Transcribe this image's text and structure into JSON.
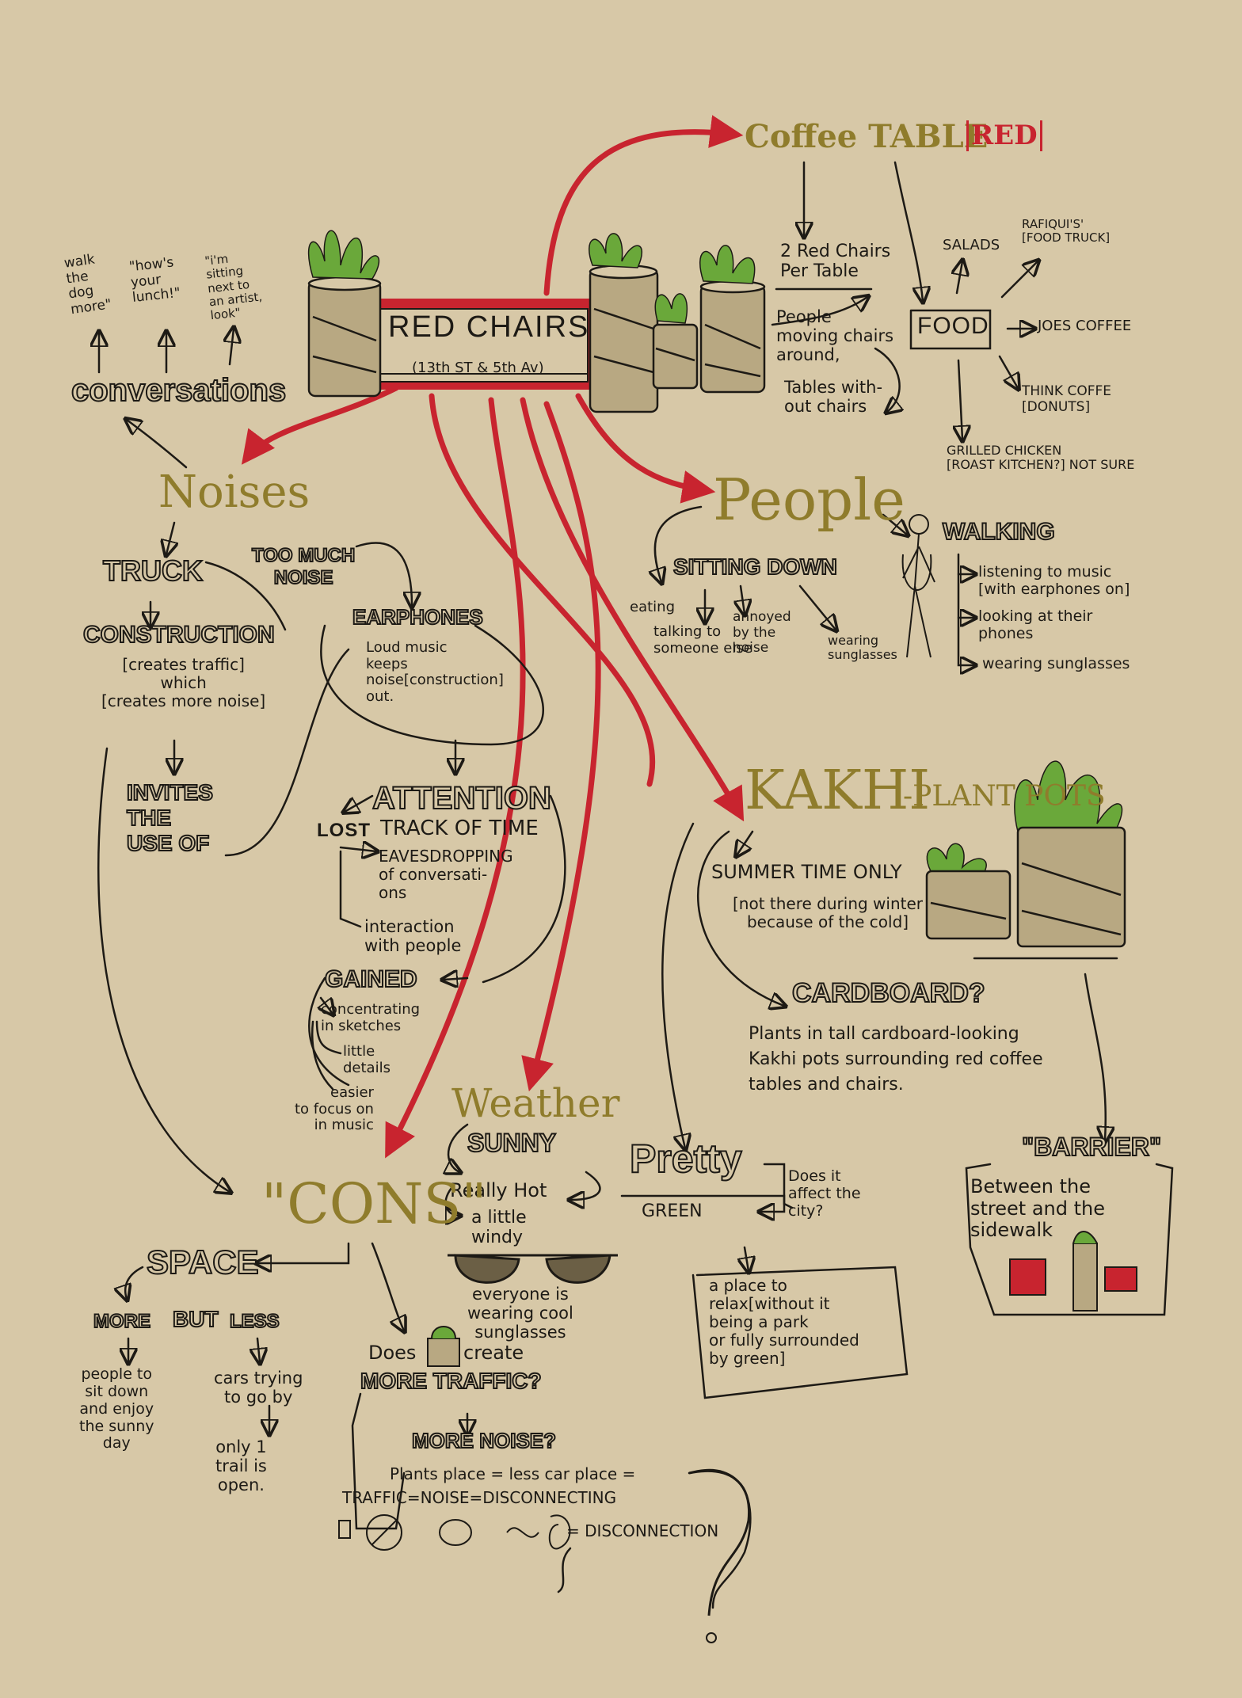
{
  "colors": {
    "background": "#d7c8a7",
    "ink": "#1d1a15",
    "accent_red": "#c8242f",
    "olive": "#8f7c2c",
    "pot": "#b8a882",
    "leaf": "#6aa83a"
  },
  "center": {
    "title": "RED CHAIRS",
    "location": "(13th ST & 5th Av)"
  },
  "coffee_table": {
    "title": "Coffee TABLE",
    "tag": "RED",
    "chairs": "2 Red Chairs\nPer Table",
    "moving": "People\nmoving chairs\naround,",
    "tables_without": "Tables with-\nout chairs",
    "food": "FOOD",
    "salads": "SALADS",
    "rafiquis": "RAFIQUI'S'\n[FOOD TRUCK]",
    "joes": "JOES COFFEE",
    "think": "THINK COFFE\n[DONUTS]",
    "grilled": "GRILLED CHICKEN\n[ROAST KITCHEN?] NOT SURE"
  },
  "conversations": {
    "title": "conversations",
    "quote1": "walk\nthe\ndog\nmore\"",
    "quote2": "\"how's\nyour\nlunch!\"",
    "quote3": "\"i'm\nsitting\nnext to\nan artist,\nlook\""
  },
  "noises": {
    "title": "Noises",
    "truck": "TRUCK",
    "too_much": "TOO MUCH\nNOISE",
    "construction": "CONSTRUCTION",
    "creates": "[creates traffic]\nwhich\n[creates more noise]",
    "invites": "INVITES\nTHE\nUSE OF",
    "earphones": "EARPHONES",
    "loud_music": "Loud music\nkeeps\nnoise[construction]\nout."
  },
  "attention": {
    "title": "ATTENTION",
    "lost": "LOST",
    "track": "TRACK OF TIME",
    "eaves": "EAVESDROPPING\nof conversati-\nons",
    "interaction": "interaction\nwith people",
    "gained": "GAINED",
    "concentrating": "concentrating\nin sketches",
    "little": "little\ndetails",
    "easier": "easier\nto focus on\nin music"
  },
  "people": {
    "title": "People",
    "sitting": "SITTING DOWN",
    "eating": "eating",
    "talking": "talking to\nsomeone else",
    "annoyed": "annoyed\nby the\nnoise",
    "wearing": "wearing\nsunglasses",
    "walking": "WALKING",
    "listening": "listening to music\n[with earphones on]",
    "looking": "looking at their\nphones",
    "walk_sunglasses": "wearing sunglasses"
  },
  "kakhi": {
    "title": "KAKHI",
    "plant_pots": "-PLANT POTS",
    "summer": "SUMMER TIME ONLY",
    "not_there": "[not there during winter\nbecause of the cold]",
    "cardboard": "CARDBOARD?",
    "plants": "Plants in tall cardboard-looking\nKakhi pots surrounding red coffee\ntables and chairs."
  },
  "barrier": {
    "title": "\"BARRIER\"",
    "desc": "Between the\nstreet and the\nsidewalk"
  },
  "weather": {
    "title": "Weather",
    "sunny": "SUNNY",
    "hot": "Really Hot",
    "windy": "a little\nwindy",
    "everyone": "everyone is\nwearing cool\nsunglasses"
  },
  "pretty": {
    "title": "Pretty",
    "green": "GREEN",
    "affect": "Does it\naffect the\ncity?",
    "relax": "a place to\nrelax[without it\nbeing a park\nor fully surrounded\nby green]"
  },
  "cons": {
    "title": "\"CONS\"",
    "space": "SPACE",
    "more": "MORE",
    "but": "BUT",
    "less": "LESS",
    "people_sit": "people to\nsit down\nand enjoy\nthe sunny\nday",
    "cars": "cars trying\nto go by",
    "only": "only 1\ntrail is\nopen.",
    "does": "Does",
    "create": "create",
    "more_traffic": "MORE TRAFFIC?",
    "more_noise": "MORE NOISE?",
    "plants_place": "Plants place = less car place =",
    "traffic_eq": "TRAFFIC=NOISE=DISCONNECTING",
    "disconnection": "= DISCONNECTION"
  }
}
